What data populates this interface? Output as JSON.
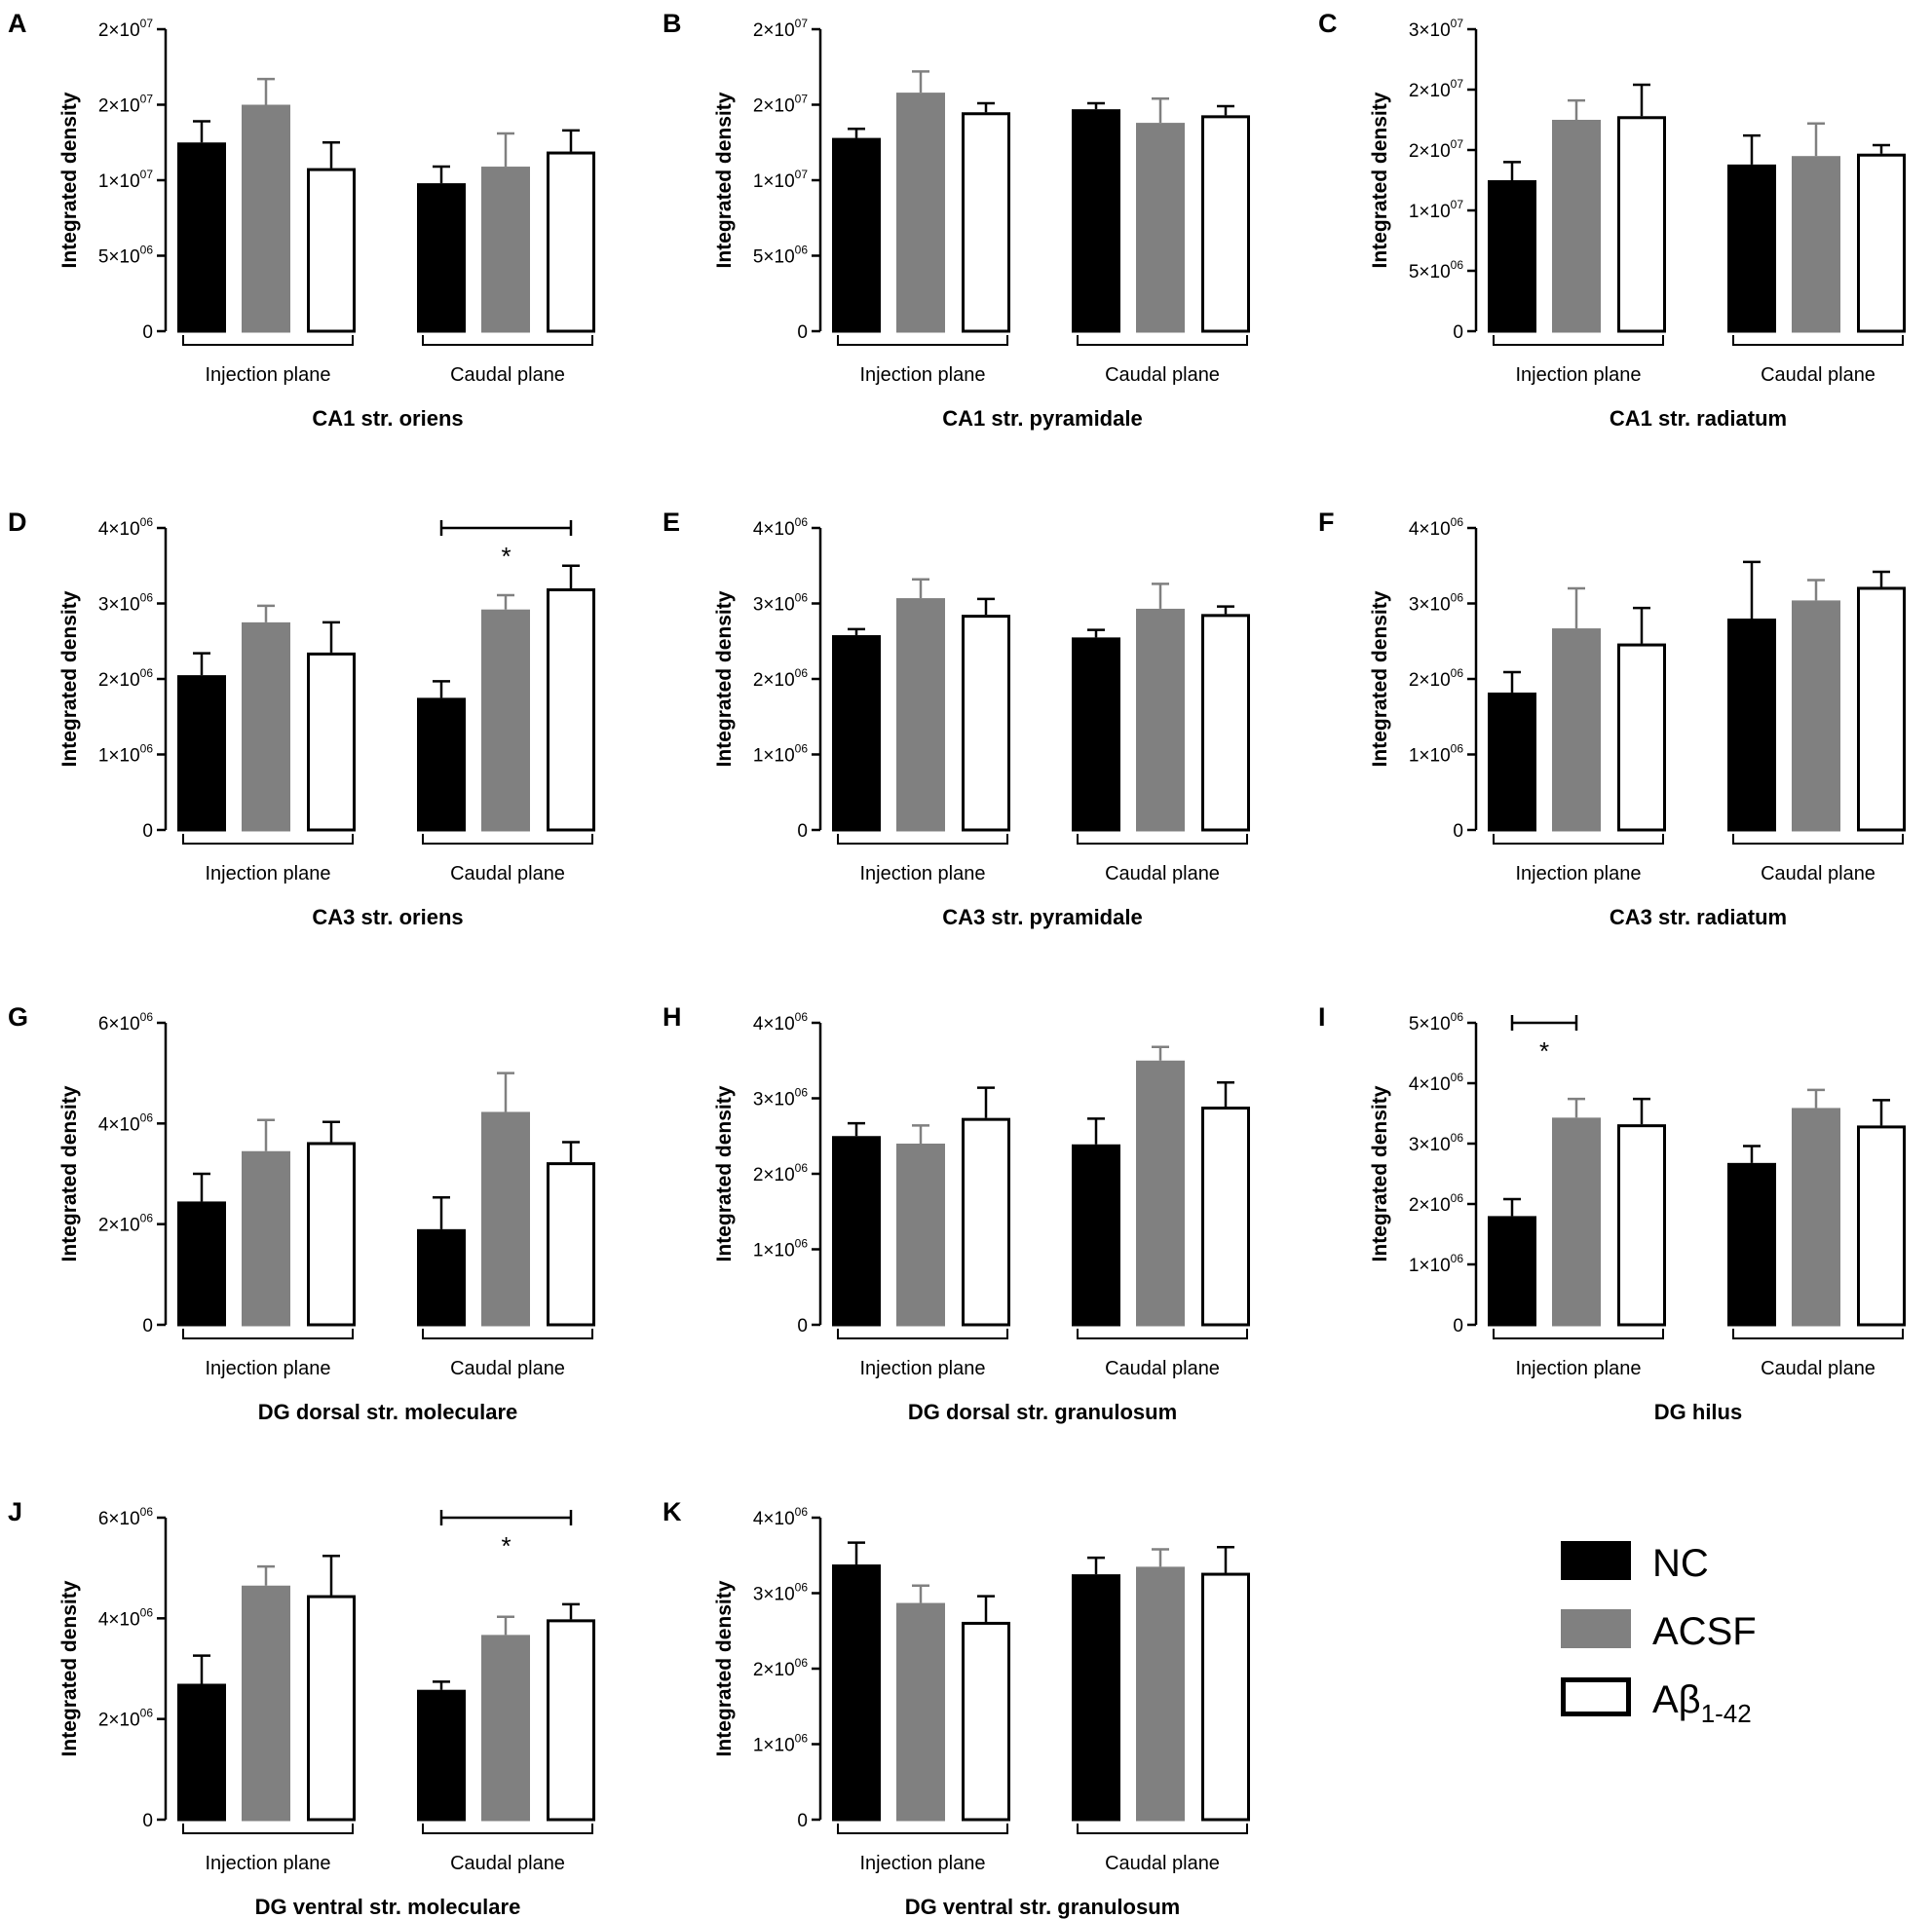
{
  "legend": [
    {
      "name": "NC",
      "fill": "#000000",
      "stroke": "#000000"
    },
    {
      "name": "ACSF",
      "fill": "#808080",
      "stroke": "#808080"
    },
    {
      "name": "Aβ",
      "subscript": "1-42",
      "fill": "#ffffff",
      "stroke": "#000000"
    }
  ],
  "chart_data": [
    {
      "type": "bar",
      "panel": "A",
      "title": "CA1 str. oriens",
      "ylabel": "Integrated density",
      "yticks": [
        {
          "value": 0,
          "label": "0"
        },
        {
          "value": 5000000,
          "label": "5×10",
          "exp": "06"
        },
        {
          "value": 10000000,
          "label": "1×10",
          "exp": "07"
        },
        {
          "value": 15000000,
          "label": "2×10",
          "exp": "07"
        },
        {
          "value": 20000000,
          "label": "2×10",
          "exp": "07"
        }
      ],
      "ylim": [
        0,
        20000000
      ],
      "categories": [
        "Injection plane",
        "Caudal plane"
      ],
      "series": [
        {
          "name": "NC",
          "values": [
            12500000,
            9800000
          ],
          "errors": [
            1400000,
            1100000
          ]
        },
        {
          "name": "ACSF",
          "values": [
            15000000,
            10900000
          ],
          "errors": [
            1700000,
            2200000
          ]
        },
        {
          "name": "Aβ1-42",
          "values": [
            10800000,
            11900000
          ],
          "errors": [
            1700000,
            1400000
          ]
        }
      ],
      "significance": []
    },
    {
      "type": "bar",
      "panel": "B",
      "title": "CA1 str. pyramidale",
      "ylabel": "Integrated density",
      "yticks": [
        {
          "value": 0,
          "label": "0"
        },
        {
          "value": 5000000,
          "label": "5×10",
          "exp": "06"
        },
        {
          "value": 10000000,
          "label": "1×10",
          "exp": "07"
        },
        {
          "value": 15000000,
          "label": "2×10",
          "exp": "07"
        },
        {
          "value": 20000000,
          "label": "2×10",
          "exp": "07"
        }
      ],
      "ylim": [
        0,
        20000000
      ],
      "categories": [
        "Injection plane",
        "Caudal plane"
      ],
      "series": [
        {
          "name": "NC",
          "values": [
            12800000,
            14700000
          ],
          "errors": [
            600000,
            400000
          ]
        },
        {
          "name": "ACSF",
          "values": [
            15800000,
            13800000
          ],
          "errors": [
            1400000,
            1600000
          ]
        },
        {
          "name": "Aβ1-42",
          "values": [
            14500000,
            14300000
          ],
          "errors": [
            600000,
            600000
          ]
        }
      ],
      "significance": []
    },
    {
      "type": "bar",
      "panel": "C",
      "title": "CA1 str. radiatum",
      "ylabel": "Integrated density",
      "yticks": [
        {
          "value": 0,
          "label": "0"
        },
        {
          "value": 5000000,
          "label": "5×10",
          "exp": "06"
        },
        {
          "value": 10000000,
          "label": "1×10",
          "exp": "07"
        },
        {
          "value": 15000000,
          "label": "2×10",
          "exp": "07"
        },
        {
          "value": 20000000,
          "label": "2×10",
          "exp": "07"
        },
        {
          "value": 25000000,
          "label": "3×10",
          "exp": "07"
        }
      ],
      "ylim": [
        0,
        25000000
      ],
      "categories": [
        "Injection plane",
        "Caudal plane"
      ],
      "series": [
        {
          "name": "NC",
          "values": [
            12500000,
            13800000
          ],
          "errors": [
            1500000,
            2400000
          ]
        },
        {
          "name": "ACSF",
          "values": [
            17500000,
            14500000
          ],
          "errors": [
            1600000,
            2700000
          ]
        },
        {
          "name": "Aβ1-42",
          "values": [
            17800000,
            14700000
          ],
          "errors": [
            2600000,
            700000
          ]
        }
      ],
      "significance": []
    },
    {
      "type": "bar",
      "panel": "D",
      "title": "CA3 str. oriens",
      "ylabel": "Integrated density",
      "yticks": [
        {
          "value": 0,
          "label": "0"
        },
        {
          "value": 1000000,
          "label": "1×10",
          "exp": "06"
        },
        {
          "value": 2000000,
          "label": "2×10",
          "exp": "06"
        },
        {
          "value": 3000000,
          "label": "3×10",
          "exp": "06"
        },
        {
          "value": 4000000,
          "label": "4×10",
          "exp": "06"
        }
      ],
      "ylim": [
        0,
        4000000
      ],
      "categories": [
        "Injection plane",
        "Caudal plane"
      ],
      "series": [
        {
          "name": "NC",
          "values": [
            2050000,
            1750000
          ],
          "errors": [
            290000,
            220000
          ]
        },
        {
          "name": "ACSF",
          "values": [
            2750000,
            2920000
          ],
          "errors": [
            220000,
            190000
          ]
        },
        {
          "name": "Aβ1-42",
          "values": [
            2350000,
            3200000
          ],
          "errors": [
            400000,
            300000
          ]
        }
      ],
      "significance": [
        {
          "group": 1,
          "from": 0,
          "to": 2,
          "label": "*"
        }
      ]
    },
    {
      "type": "bar",
      "panel": "E",
      "title": "CA3 str. pyramidale",
      "ylabel": "Integrated density",
      "yticks": [
        {
          "value": 0,
          "label": "0"
        },
        {
          "value": 1000000,
          "label": "1×10",
          "exp": "06"
        },
        {
          "value": 2000000,
          "label": "2×10",
          "exp": "06"
        },
        {
          "value": 3000000,
          "label": "3×10",
          "exp": "06"
        },
        {
          "value": 4000000,
          "label": "4×10",
          "exp": "06"
        }
      ],
      "ylim": [
        0,
        4000000
      ],
      "categories": [
        "Injection plane",
        "Caudal plane"
      ],
      "series": [
        {
          "name": "NC",
          "values": [
            2580000,
            2550000
          ],
          "errors": [
            80000,
            100000
          ]
        },
        {
          "name": "ACSF",
          "values": [
            3070000,
            2930000
          ],
          "errors": [
            250000,
            330000
          ]
        },
        {
          "name": "Aβ1-42",
          "values": [
            2850000,
            2860000
          ],
          "errors": [
            210000,
            100000
          ]
        }
      ],
      "significance": []
    },
    {
      "type": "bar",
      "panel": "F",
      "title": "CA3 str. radiatum",
      "ylabel": "Integrated density",
      "yticks": [
        {
          "value": 0,
          "label": "0"
        },
        {
          "value": 1000000,
          "label": "1×10",
          "exp": "06"
        },
        {
          "value": 2000000,
          "label": "2×10",
          "exp": "06"
        },
        {
          "value": 3000000,
          "label": "3×10",
          "exp": "06"
        },
        {
          "value": 4000000,
          "label": "4×10",
          "exp": "06"
        }
      ],
      "ylim": [
        0,
        4000000
      ],
      "categories": [
        "Injection plane",
        "Caudal plane"
      ],
      "series": [
        {
          "name": "NC",
          "values": [
            1820000,
            2800000
          ],
          "errors": [
            270000,
            750000
          ]
        },
        {
          "name": "ACSF",
          "values": [
            2670000,
            3040000
          ],
          "errors": [
            530000,
            270000
          ]
        },
        {
          "name": "Aβ1-42",
          "values": [
            2470000,
            3220000
          ],
          "errors": [
            470000,
            200000
          ]
        }
      ],
      "significance": []
    },
    {
      "type": "bar",
      "panel": "G",
      "title": "DG dorsal str. moleculare",
      "ylabel": "Integrated density",
      "yticks": [
        {
          "value": 0,
          "label": "0"
        },
        {
          "value": 2000000,
          "label": "2×10",
          "exp": "06"
        },
        {
          "value": 4000000,
          "label": "4×10",
          "exp": "06"
        },
        {
          "value": 6000000,
          "label": "6×10",
          "exp": "06"
        }
      ],
      "ylim": [
        0,
        6000000
      ],
      "categories": [
        "Injection plane",
        "Caudal plane"
      ],
      "series": [
        {
          "name": "NC",
          "values": [
            2450000,
            1900000
          ],
          "errors": [
            550000,
            630000
          ]
        },
        {
          "name": "ACSF",
          "values": [
            3450000,
            4230000
          ],
          "errors": [
            620000,
            770000
          ]
        },
        {
          "name": "Aβ1-42",
          "values": [
            3630000,
            3230000
          ],
          "errors": [
            400000,
            400000
          ]
        }
      ],
      "significance": []
    },
    {
      "type": "bar",
      "panel": "H",
      "title": "DG dorsal str. granulosum",
      "ylabel": "Integrated density",
      "yticks": [
        {
          "value": 0,
          "label": "0"
        },
        {
          "value": 1000000,
          "label": "1×10",
          "exp": "06"
        },
        {
          "value": 2000000,
          "label": "2×10",
          "exp": "06"
        },
        {
          "value": 3000000,
          "label": "3×10",
          "exp": "06"
        },
        {
          "value": 4000000,
          "label": "4×10",
          "exp": "06"
        }
      ],
      "ylim": [
        0,
        4000000
      ],
      "categories": [
        "Injection plane",
        "Caudal plane"
      ],
      "series": [
        {
          "name": "NC",
          "values": [
            2500000,
            2390000
          ],
          "errors": [
            170000,
            340000
          ]
        },
        {
          "name": "ACSF",
          "values": [
            2400000,
            3500000
          ],
          "errors": [
            240000,
            180000
          ]
        },
        {
          "name": "Aβ1-42",
          "values": [
            2740000,
            2890000
          ],
          "errors": [
            400000,
            320000
          ]
        }
      ],
      "significance": []
    },
    {
      "type": "bar",
      "panel": "I",
      "title": "DG hilus",
      "ylabel": "Integrated density",
      "yticks": [
        {
          "value": 0,
          "label": "0"
        },
        {
          "value": 1000000,
          "label": "1×10",
          "exp": "06"
        },
        {
          "value": 2000000,
          "label": "2×10",
          "exp": "06"
        },
        {
          "value": 3000000,
          "label": "3×10",
          "exp": "06"
        },
        {
          "value": 4000000,
          "label": "4×10",
          "exp": "06"
        },
        {
          "value": 5000000,
          "label": "5×10",
          "exp": "06"
        }
      ],
      "ylim": [
        0,
        5000000
      ],
      "categories": [
        "Injection plane",
        "Caudal plane"
      ],
      "series": [
        {
          "name": "NC",
          "values": [
            1800000,
            2680000
          ],
          "errors": [
            280000,
            280000
          ]
        },
        {
          "name": "ACSF",
          "values": [
            3430000,
            3590000
          ],
          "errors": [
            310000,
            300000
          ]
        },
        {
          "name": "Aβ1-42",
          "values": [
            3320000,
            3300000
          ],
          "errors": [
            420000,
            420000
          ]
        }
      ],
      "significance": [
        {
          "group": 0,
          "from": 0,
          "to": 1,
          "label": "*"
        }
      ]
    },
    {
      "type": "bar",
      "panel": "J",
      "title": "DG ventral str. moleculare",
      "ylabel": "Integrated density",
      "yticks": [
        {
          "value": 0,
          "label": "0"
        },
        {
          "value": 2000000,
          "label": "2×10",
          "exp": "06"
        },
        {
          "value": 4000000,
          "label": "4×10",
          "exp": "06"
        },
        {
          "value": 6000000,
          "label": "6×10",
          "exp": "06"
        }
      ],
      "ylim": [
        0,
        6000000
      ],
      "categories": [
        "Injection plane",
        "Caudal plane"
      ],
      "series": [
        {
          "name": "NC",
          "values": [
            2700000,
            2580000
          ],
          "errors": [
            560000,
            160000
          ]
        },
        {
          "name": "ACSF",
          "values": [
            4650000,
            3670000
          ],
          "errors": [
            380000,
            360000
          ]
        },
        {
          "name": "Aβ1-42",
          "values": [
            4460000,
            3980000
          ],
          "errors": [
            780000,
            300000
          ]
        }
      ],
      "significance": [
        {
          "group": 1,
          "from": 0,
          "to": 2,
          "label": "*"
        }
      ]
    },
    {
      "type": "bar",
      "panel": "K",
      "title": "DG ventral str. granulosum",
      "ylabel": "Integrated density",
      "yticks": [
        {
          "value": 0,
          "label": "0"
        },
        {
          "value": 1000000,
          "label": "1×10",
          "exp": "06"
        },
        {
          "value": 2000000,
          "label": "2×10",
          "exp": "06"
        },
        {
          "value": 3000000,
          "label": "3×10",
          "exp": "06"
        },
        {
          "value": 4000000,
          "label": "4×10",
          "exp": "06"
        }
      ],
      "ylim": [
        0,
        4000000
      ],
      "categories": [
        "Injection plane",
        "Caudal plane"
      ],
      "series": [
        {
          "name": "NC",
          "values": [
            3380000,
            3250000
          ],
          "errors": [
            290000,
            220000
          ]
        },
        {
          "name": "ACSF",
          "values": [
            2870000,
            3350000
          ],
          "errors": [
            230000,
            230000
          ]
        },
        {
          "name": "Aβ1-42",
          "values": [
            2620000,
            3270000
          ],
          "errors": [
            340000,
            340000
          ]
        }
      ],
      "significance": []
    }
  ]
}
